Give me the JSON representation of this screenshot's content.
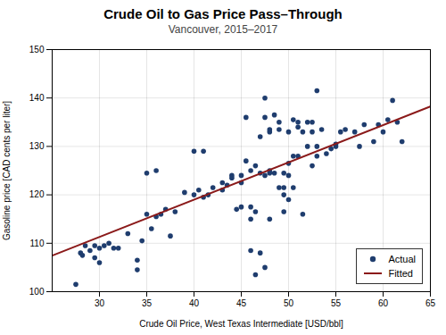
{
  "chart_data": {
    "type": "scatter",
    "title": "Crude Oil to Gas Price Pass–Through",
    "subtitle": "Vancouver, 2015–2017",
    "xlabel": "Crude Oil Price, West Texas Intermediate [USD/bbl]",
    "ylabel": "Gasoline price [CAD cents per liter]",
    "xlim": [
      25,
      65
    ],
    "ylim": [
      100,
      150
    ],
    "xticks": [
      30,
      35,
      40,
      45,
      50,
      55,
      60,
      65
    ],
    "yticks": [
      100,
      110,
      120,
      130,
      140,
      150
    ],
    "grid": true,
    "legend": "lower right",
    "series": [
      {
        "name": "Actual",
        "type": "scatter",
        "color": "#1f3d6e",
        "x": [
          27.5,
          28.0,
          28.5,
          29.0,
          29.5,
          30.0,
          30.0,
          30.5,
          31.0,
          31.5,
          32.0,
          33.0,
          34.0,
          34.5,
          35.0,
          35.5,
          36.0,
          36.5,
          37.0,
          38.0,
          39.0,
          40.0,
          40.5,
          41.0,
          41.0,
          41.5,
          42.0,
          43.0,
          43.5,
          44.0,
          44.0,
          44.5,
          45.0,
          45.0,
          45.5,
          45.5,
          46.0,
          46.0,
          46.5,
          46.5,
          47.0,
          47.0,
          47.5,
          47.5,
          47.5,
          48.0,
          48.0,
          48.0,
          48.5,
          48.5,
          49.0,
          49.0,
          49.5,
          49.5,
          50.0,
          50.0,
          50.0,
          50.5,
          50.5,
          51.0,
          51.0,
          51.5,
          51.5,
          52.0,
          52.0,
          52.5,
          52.5,
          53.0,
          53.0,
          53.5,
          54.0,
          54.5,
          55.0,
          55.5,
          56.0,
          57.0,
          57.5,
          58.0,
          59.0,
          59.5,
          60.0,
          60.5,
          61.0,
          61.5,
          62.0,
          46.0,
          47.0,
          48.0,
          49.0,
          50.0,
          46.5,
          47.5,
          49.5,
          51.0,
          52.5,
          35.0,
          36.0,
          40.0,
          43.0,
          46.0,
          48.0,
          50.5,
          53.0,
          55.0,
          28.2,
          29.5,
          34.0,
          37.5,
          45.0,
          49.5
        ],
        "values": [
          101.5,
          108.0,
          109.5,
          108.5,
          107.0,
          109.0,
          106.0,
          109.5,
          110.0,
          109.0,
          109.0,
          112.0,
          104.5,
          110.5,
          116.0,
          113.0,
          115.5,
          116.0,
          117.0,
          116.5,
          120.5,
          120.0,
          121.0,
          119.5,
          129.0,
          120.0,
          121.5,
          121.0,
          122.0,
          124.0,
          123.5,
          117.0,
          124.0,
          117.5,
          127.0,
          136.0,
          125.0,
          117.5,
          126.0,
          116.5,
          132.0,
          124.5,
          140.0,
          136.0,
          124.0,
          133.5,
          133.0,
          124.5,
          136.5,
          124.5,
          135.0,
          133.5,
          124.5,
          116.5,
          133.0,
          126.5,
          124.0,
          135.5,
          128.0,
          135.0,
          134.0,
          133.0,
          116.0,
          135.0,
          130.0,
          135.0,
          133.0,
          130.0,
          128.0,
          133.5,
          128.5,
          129.5,
          130.5,
          133.0,
          133.5,
          133.0,
          130.0,
          134.5,
          131.0,
          134.5,
          133.0,
          135.5,
          139.5,
          135.0,
          131.0,
          108.5,
          108.0,
          115.0,
          121.5,
          119.0,
          103.5,
          105.0,
          120.0,
          128.0,
          126.0,
          124.5,
          125.0,
          129.0,
          122.5,
          115.0,
          125.0,
          121.5,
          141.5,
          130.0,
          107.5,
          109.5,
          106.5,
          111.5,
          122.5,
          121.5
        ]
      },
      {
        "name": "Fitted",
        "type": "line",
        "color": "#8b1a1a",
        "x": [
          25,
          65
        ],
        "values": [
          107.45,
          138.25
        ]
      }
    ]
  }
}
